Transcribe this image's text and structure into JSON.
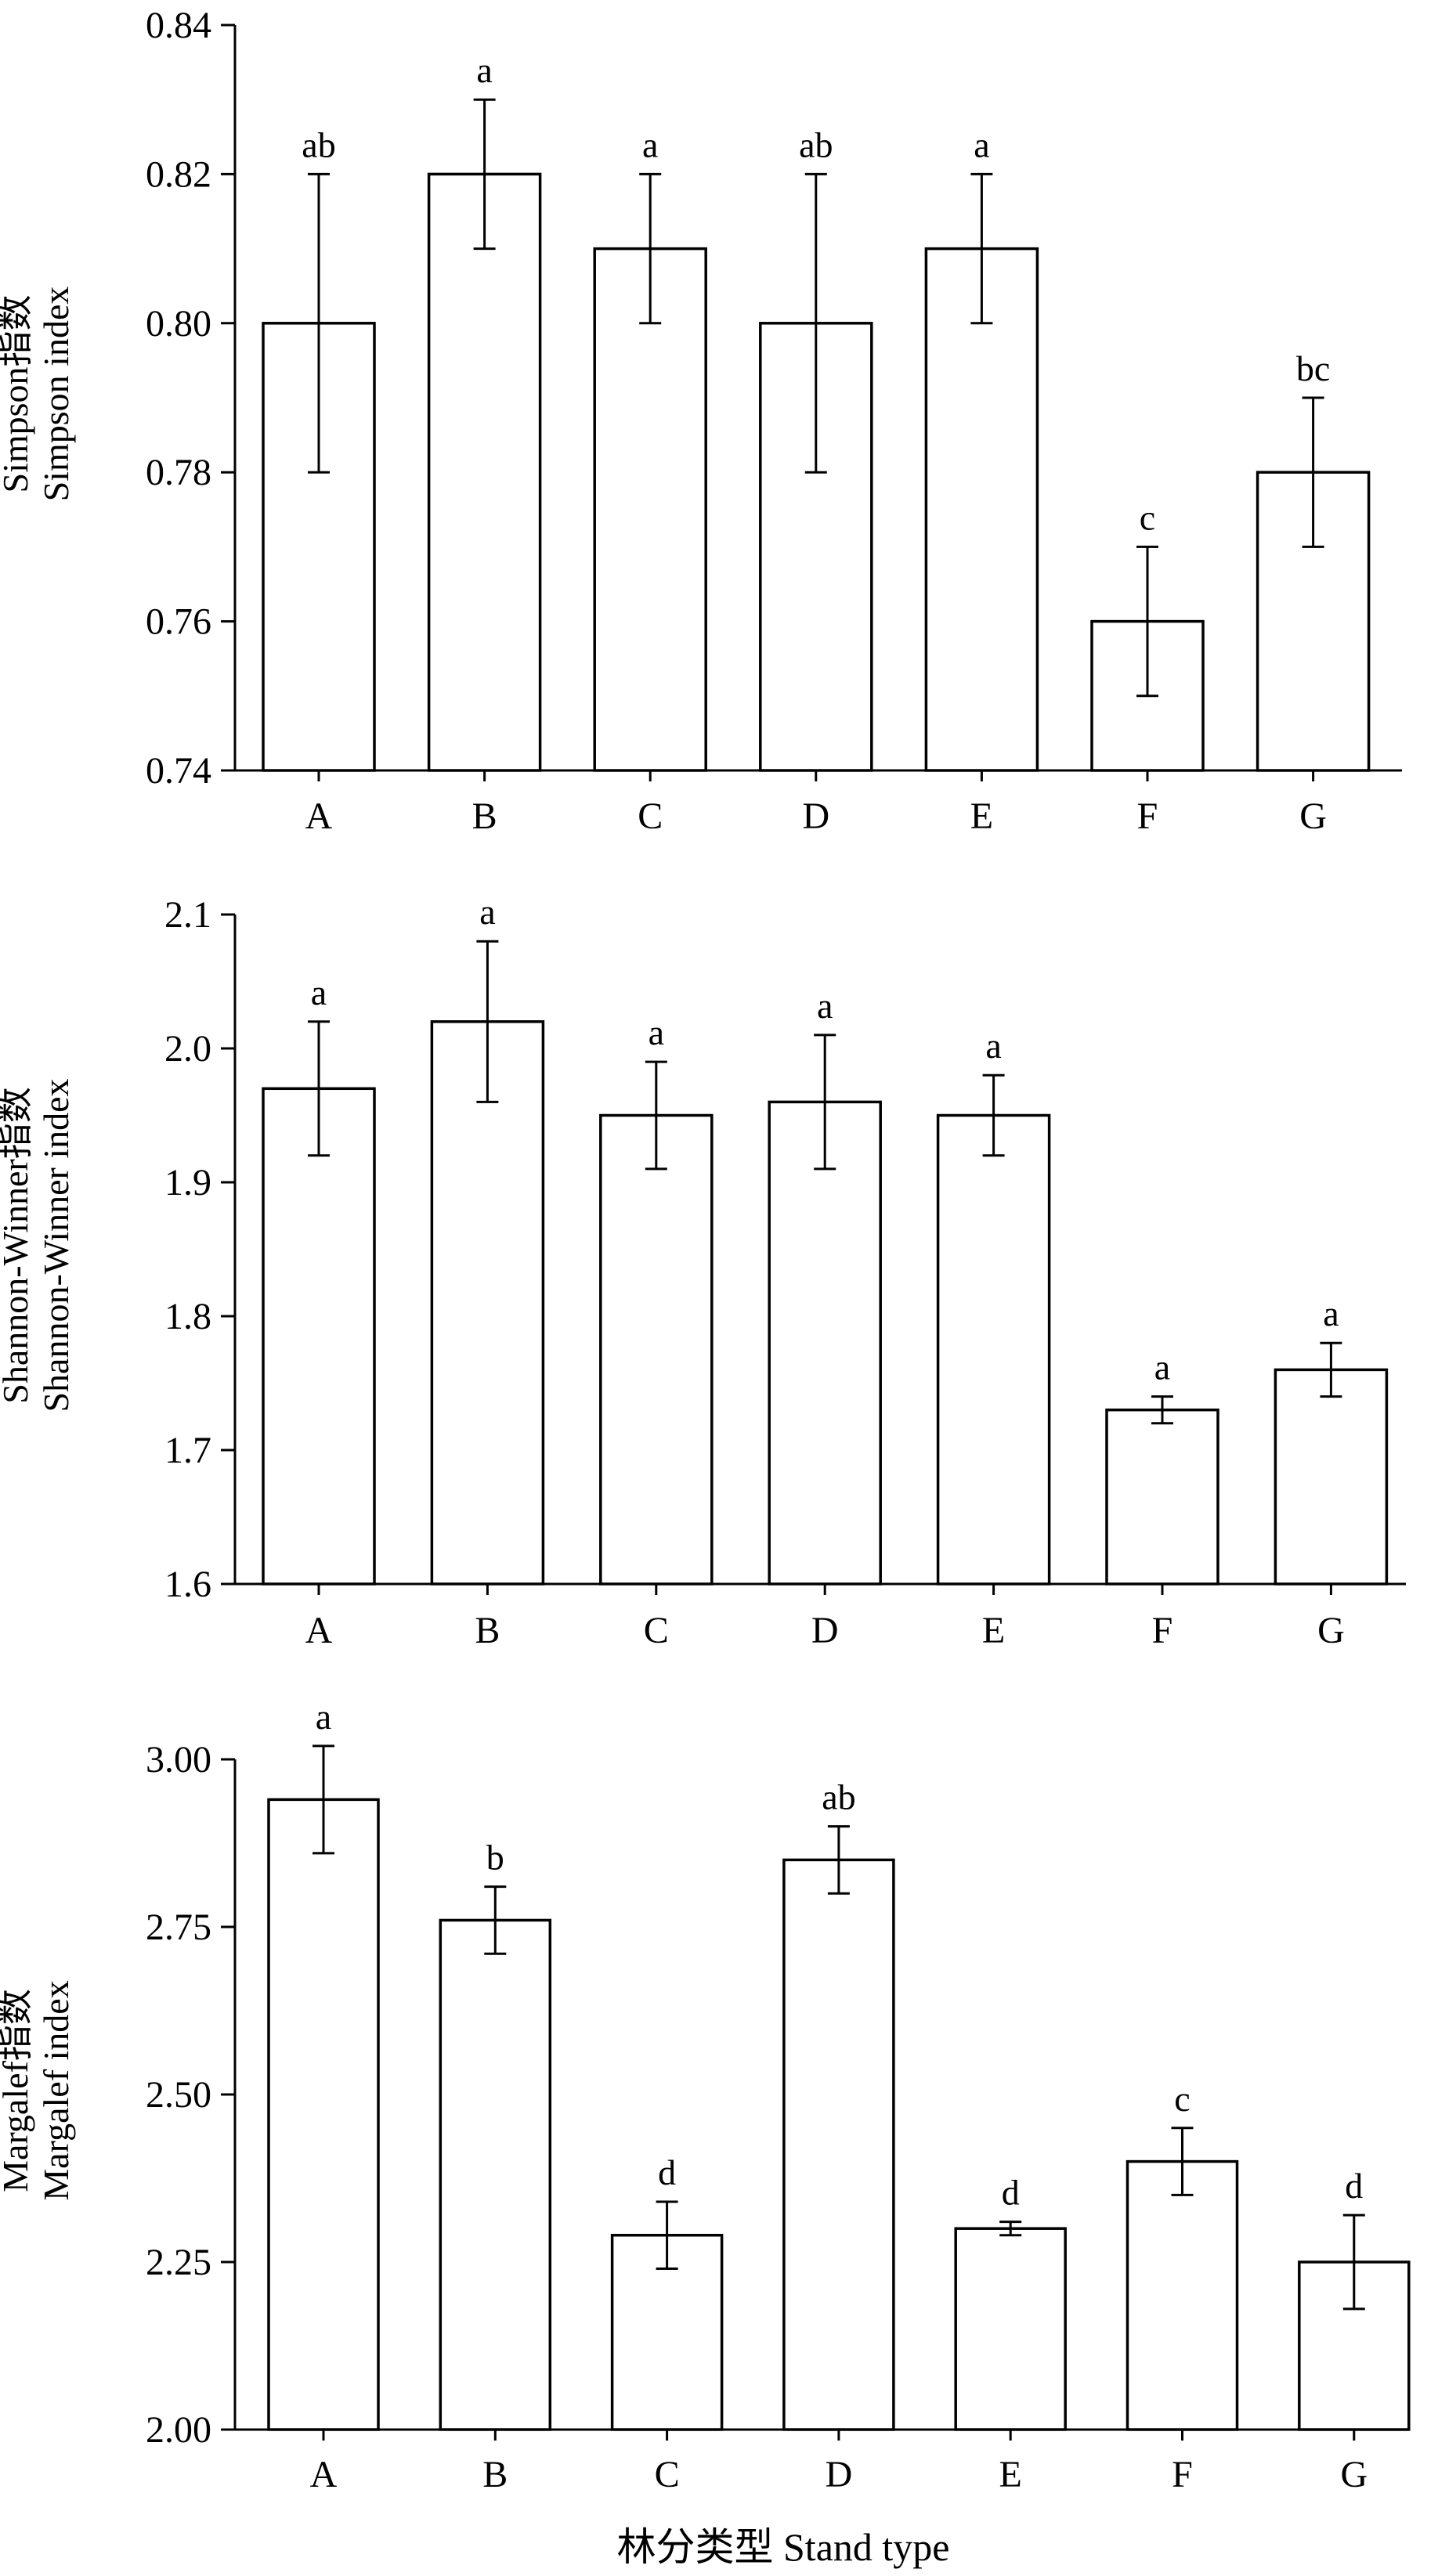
{
  "figure": {
    "x_title": "林分类型 Stand type"
  },
  "chart_data": [
    {
      "type": "bar",
      "ylabel_cn": "Simpson指数",
      "ylabel_en": "Simpson index",
      "xlabel": "",
      "categories": [
        "A",
        "B",
        "C",
        "D",
        "E",
        "F",
        "G"
      ],
      "values": [
        0.8,
        0.82,
        0.81,
        0.8,
        0.81,
        0.76,
        0.78
      ],
      "errors": [
        0.02,
        0.01,
        0.01,
        0.02,
        0.01,
        0.01,
        0.01
      ],
      "significance": [
        "ab",
        "a",
        "a",
        "ab",
        "a",
        "c",
        "bc"
      ],
      "ylim": [
        0.74,
        0.84
      ],
      "yticks": [
        0.74,
        0.76,
        0.78,
        0.8,
        0.82,
        0.84
      ],
      "ytick_labels": [
        "0.74",
        "0.76",
        "0.78",
        "0.80",
        "0.82",
        "0.84"
      ]
    },
    {
      "type": "bar",
      "ylabel_cn": "Shannon-Winner指数",
      "ylabel_en": "Shannon-Winner index",
      "xlabel": "",
      "categories": [
        "A",
        "B",
        "C",
        "D",
        "E",
        "F",
        "G"
      ],
      "values": [
        1.97,
        2.02,
        1.95,
        1.96,
        1.95,
        1.73,
        1.76
      ],
      "errors": [
        0.05,
        0.06,
        0.04,
        0.05,
        0.03,
        0.01,
        0.02
      ],
      "significance": [
        "a",
        "a",
        "a",
        "a",
        "a",
        "a",
        "a"
      ],
      "ylim": [
        1.6,
        2.1
      ],
      "yticks": [
        1.6,
        1.7,
        1.8,
        1.9,
        2.0,
        2.1
      ],
      "ytick_labels": [
        "1.6",
        "1.7",
        "1.8",
        "1.9",
        "2.0",
        "2.1"
      ]
    },
    {
      "type": "bar",
      "ylabel_cn": "Margalef指数",
      "ylabel_en": "Margalef index",
      "xlabel": "林分类型 Stand type",
      "categories": [
        "A",
        "B",
        "C",
        "D",
        "E",
        "F",
        "G"
      ],
      "values": [
        2.94,
        2.76,
        2.29,
        2.85,
        2.3,
        2.4,
        2.25
      ],
      "errors": [
        0.08,
        0.05,
        0.05,
        0.05,
        0.01,
        0.05,
        0.07
      ],
      "significance": [
        "a",
        "b",
        "d",
        "ab",
        "d",
        "c",
        "d"
      ],
      "ylim": [
        2.0,
        3.0
      ],
      "yticks": [
        2.0,
        2.25,
        2.5,
        2.75,
        3.0
      ],
      "ytick_labels": [
        "2.00",
        "2.25",
        "2.50",
        "2.75",
        "3.00"
      ]
    }
  ]
}
